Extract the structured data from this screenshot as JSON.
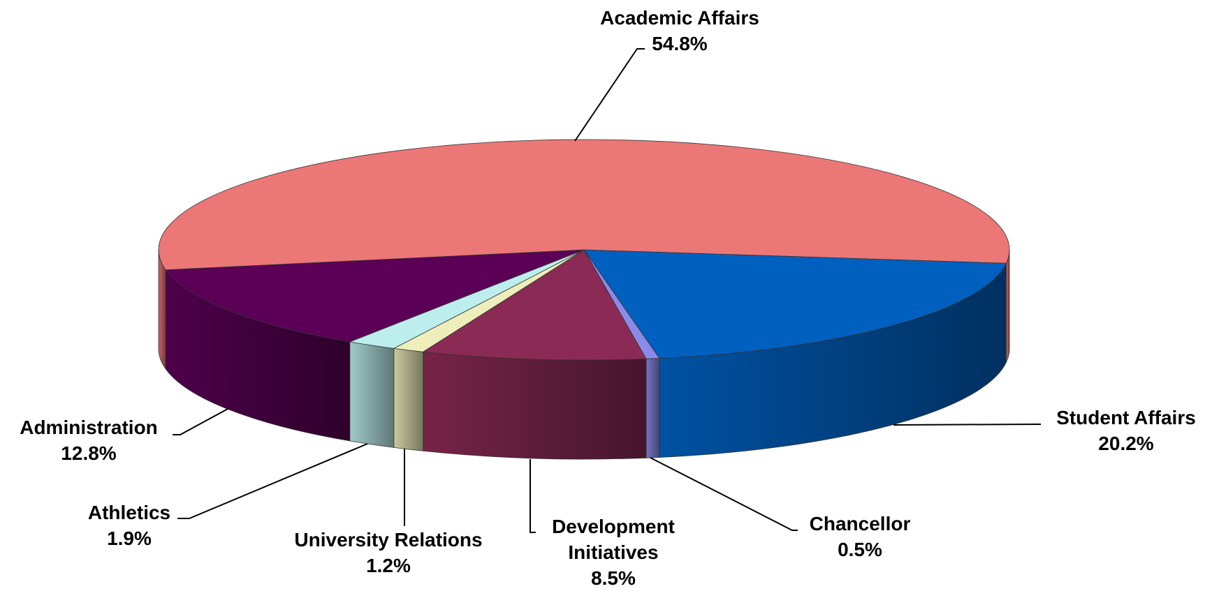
{
  "chart_data": {
    "type": "pie",
    "categories": [
      "Student Affairs",
      "Chancellor",
      "Development Initiatives",
      "University Relations",
      "Athletics",
      "Administration",
      "Academic Affairs"
    ],
    "values": [
      20.2,
      0.5,
      8.5,
      1.2,
      1.9,
      12.8,
      54.8
    ],
    "value_labels": [
      "20.2%",
      "0.5%",
      "8.5%",
      "1.2%",
      "1.9%",
      "12.8%",
      "54.8%"
    ],
    "colors": [
      "#0060C0",
      "#8A8AE8",
      "#8B2A55",
      "#EEEEBB",
      "#BDEEEE",
      "#5C0057",
      "#EC7777"
    ]
  }
}
